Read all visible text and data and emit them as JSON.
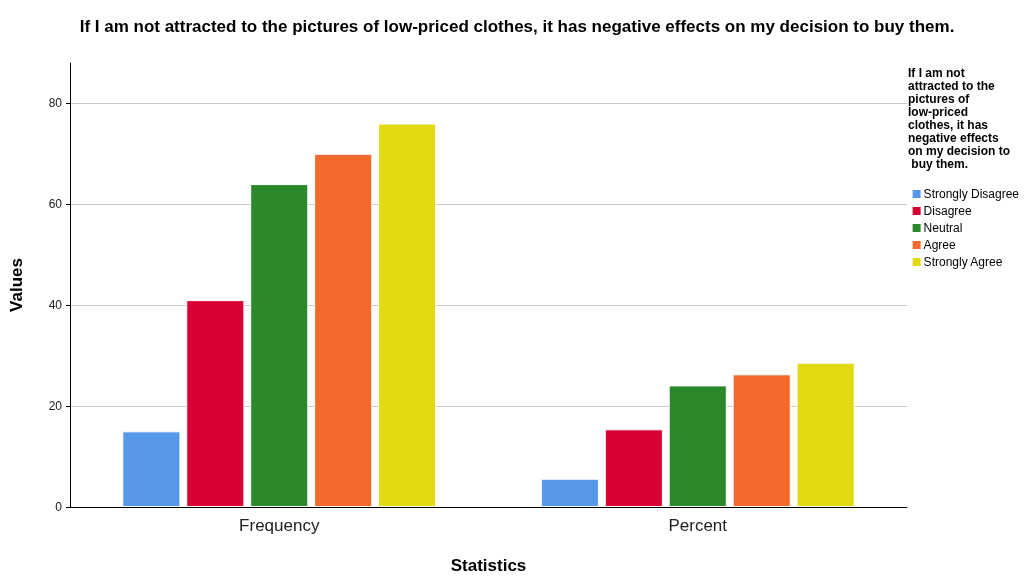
{
  "chart_data": {
    "type": "bar",
    "title": "If I am not attracted to the pictures of low-priced clothes, it has negative effects on my decision to buy them.",
    "xlabel": "Statistics",
    "ylabel": "Values",
    "legend_title": "If I am not attracted to the pictures of low-priced clothes, it has negative effects on my decision to buy them.",
    "categories": [
      "Frequency",
      "Percent"
    ],
    "series": [
      {
        "name": "Strongly Disagree",
        "color": "#5799e8",
        "values": [
          15,
          5.6
        ]
      },
      {
        "name": "Disagree",
        "color": "#d90134",
        "values": [
          41,
          15.4
        ]
      },
      {
        "name": "Neutral",
        "color": "#2b892b",
        "values": [
          64,
          24.1
        ]
      },
      {
        "name": "Agree",
        "color": "#f2692b",
        "values": [
          70,
          26.3
        ]
      },
      {
        "name": "Strongly Agree",
        "color": "#e3d912",
        "values": [
          76,
          28.6
        ]
      }
    ],
    "ylim": [
      0,
      88
    ],
    "yticks": [
      0,
      20,
      40,
      60,
      80
    ],
    "grid": "y",
    "legend": "right"
  }
}
